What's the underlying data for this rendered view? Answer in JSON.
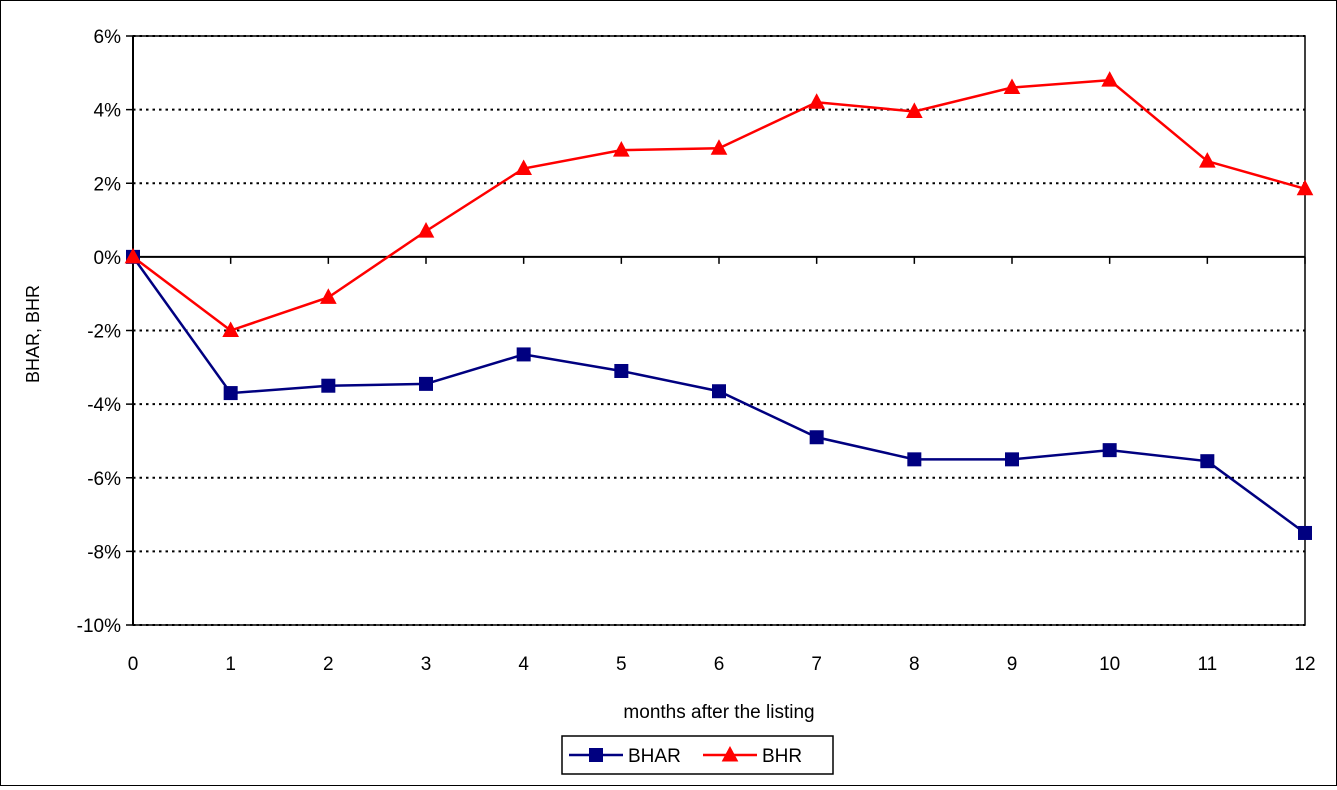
{
  "chart_data": {
    "type": "line",
    "title": "",
    "xlabel": "months after the listing",
    "ylabel": "BHAR, BHR",
    "x": [
      0,
      1,
      2,
      3,
      4,
      5,
      6,
      7,
      8,
      9,
      10,
      11,
      12
    ],
    "x_tick_labels": [
      "0",
      "1",
      "2",
      "3",
      "4",
      "5",
      "6",
      "7",
      "8",
      "9",
      "10",
      "11",
      "12"
    ],
    "y_tick_labels": [
      "6%",
      "4%",
      "2%",
      "0%",
      "-2%",
      "-4%",
      "-6%",
      "-8%",
      "-10%"
    ],
    "y_ticks": [
      6,
      4,
      2,
      0,
      -2,
      -4,
      -6,
      -8,
      -10
    ],
    "ylim": [
      -10,
      6
    ],
    "y_unit": "%",
    "grid": "horizontal dotted",
    "legend_position": "bottom",
    "series": [
      {
        "name": "BHAR",
        "color": "#000080",
        "marker": "square",
        "values": [
          0.0,
          -3.7,
          -3.5,
          -3.45,
          -2.65,
          -3.1,
          -3.65,
          -4.9,
          -5.5,
          -5.5,
          -5.25,
          -5.55,
          -7.5
        ]
      },
      {
        "name": "BHR",
        "color": "#ff0000",
        "marker": "triangle",
        "values": [
          0.0,
          -2.0,
          -1.1,
          0.7,
          2.4,
          2.9,
          2.95,
          4.2,
          3.95,
          4.6,
          4.8,
          2.6,
          1.85
        ]
      }
    ]
  }
}
